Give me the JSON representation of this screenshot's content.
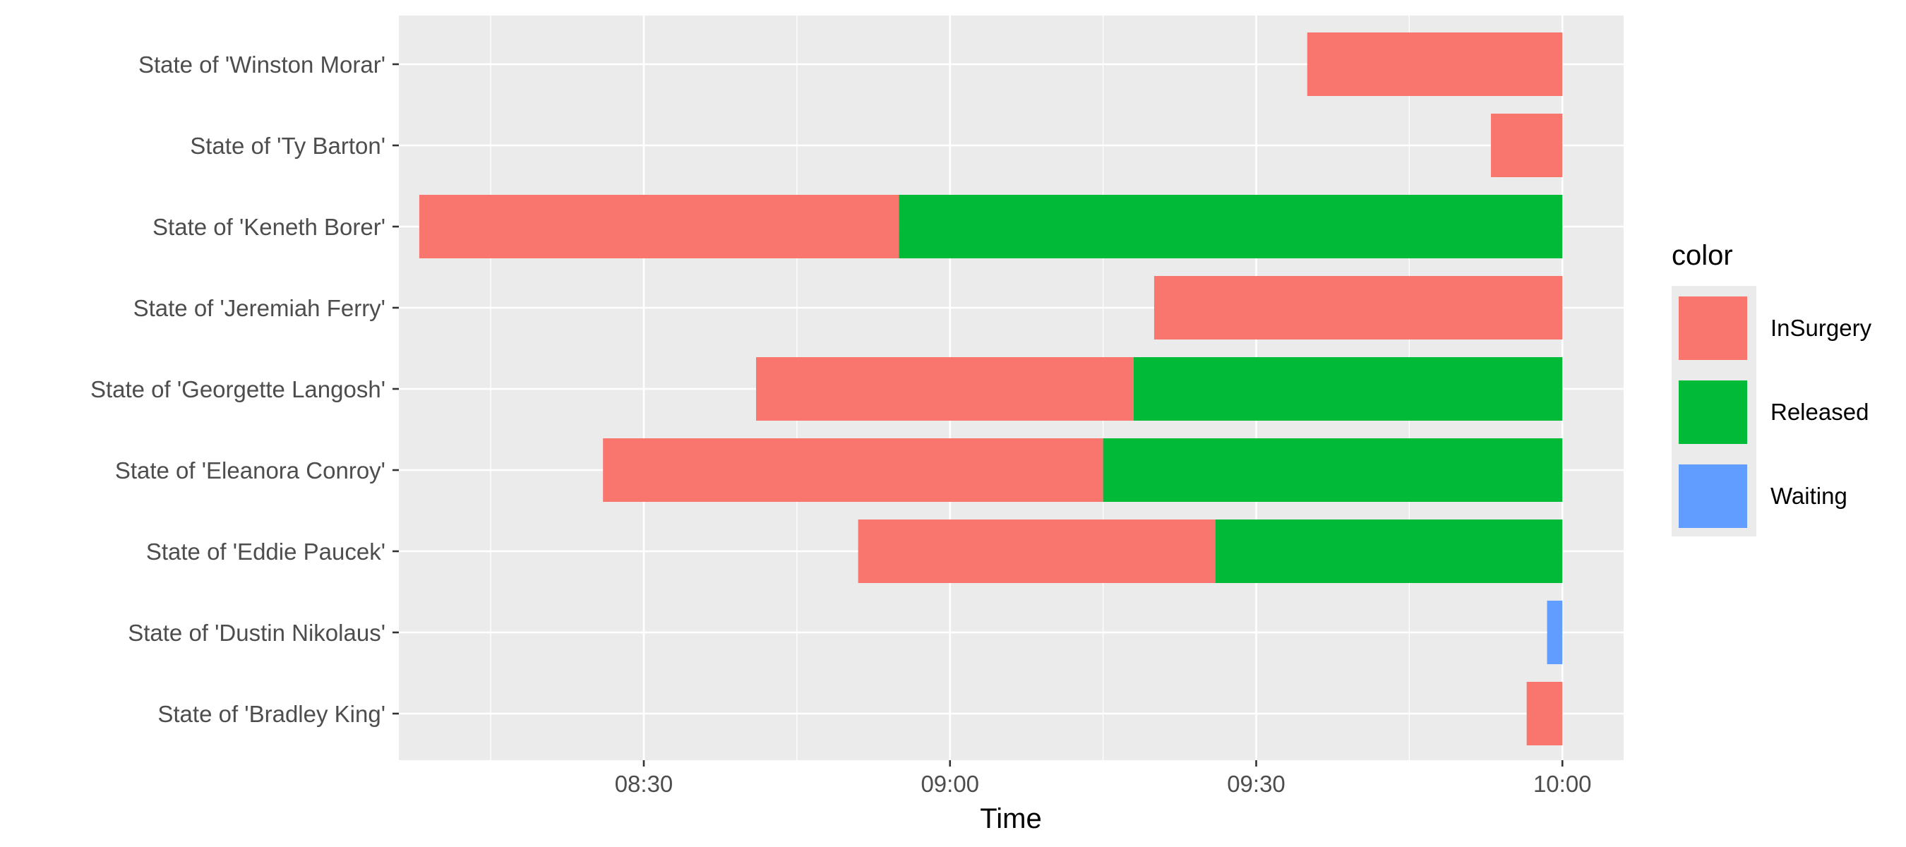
{
  "chart_data": {
    "type": "bar",
    "orientation": "horizontal",
    "title": "",
    "xlabel": "Time",
    "ylabel": "",
    "xlim": [
      "08:06",
      "10:06"
    ],
    "x_ticks": [
      "08:30",
      "09:00",
      "09:30",
      "10:00"
    ],
    "grid": true,
    "legend": {
      "title": "color",
      "placement": "right",
      "entries": [
        "InSurgery",
        "Released",
        "Waiting"
      ]
    },
    "colors": {
      "InSurgery": "#F8766D",
      "Released": "#00BA38",
      "Waiting": "#619CFF"
    },
    "categories": [
      "State of 'Winston Morar'",
      "State of 'Ty Barton'",
      "State of 'Keneth Borer'",
      "State of 'Jeremiah Ferry'",
      "State of 'Georgette Langosh'",
      "State of 'Eleanora Conroy'",
      "State of 'Eddie Paucek'",
      "State of 'Dustin Nikolaus'",
      "State of 'Bradley King'"
    ],
    "segments": [
      {
        "category": "State of 'Winston Morar'",
        "state": "InSurgery",
        "start": "09:35",
        "end": "10:00"
      },
      {
        "category": "State of 'Ty Barton'",
        "state": "InSurgery",
        "start": "09:53",
        "end": "10:00"
      },
      {
        "category": "State of 'Keneth Borer'",
        "state": "InSurgery",
        "start": "08:08",
        "end": "08:55"
      },
      {
        "category": "State of 'Keneth Borer'",
        "state": "Released",
        "start": "08:55",
        "end": "10:00"
      },
      {
        "category": "State of 'Jeremiah Ferry'",
        "state": "InSurgery",
        "start": "09:20",
        "end": "10:00"
      },
      {
        "category": "State of 'Georgette Langosh'",
        "state": "InSurgery",
        "start": "08:41",
        "end": "09:18"
      },
      {
        "category": "State of 'Georgette Langosh'",
        "state": "Released",
        "start": "09:18",
        "end": "10:00"
      },
      {
        "category": "State of 'Eleanora Conroy'",
        "state": "InSurgery",
        "start": "08:26",
        "end": "09:15"
      },
      {
        "category": "State of 'Eleanora Conroy'",
        "state": "Released",
        "start": "09:15",
        "end": "10:00"
      },
      {
        "category": "State of 'Eddie Paucek'",
        "state": "InSurgery",
        "start": "08:51",
        "end": "09:26"
      },
      {
        "category": "State of 'Eddie Paucek'",
        "state": "Released",
        "start": "09:26",
        "end": "10:00"
      },
      {
        "category": "State of 'Dustin Nikolaus'",
        "state": "Waiting",
        "start": "09:58.5",
        "end": "10:00"
      },
      {
        "category": "State of 'Bradley King'",
        "state": "InSurgery",
        "start": "09:56.5",
        "end": "10:00"
      }
    ]
  }
}
